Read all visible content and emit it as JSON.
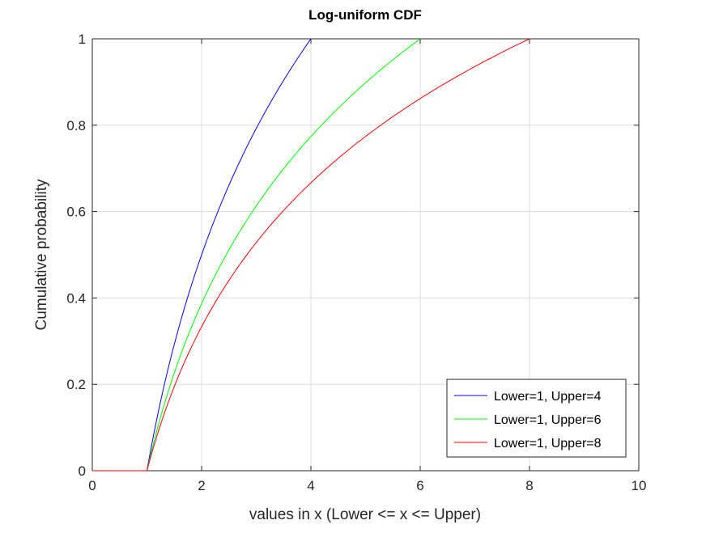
{
  "chart_data": {
    "type": "line",
    "title": "Log-uniform CDF",
    "xlabel": "values in x (Lower <= x <= Upper)",
    "ylabel": "Cumulative probability",
    "xlim": [
      0,
      10
    ],
    "ylim": [
      0,
      1
    ],
    "xticks": [
      "0",
      "2",
      "4",
      "6",
      "8",
      "10"
    ],
    "yticks": [
      "0",
      "0.2",
      "0.4",
      "0.6",
      "0.8",
      "1"
    ],
    "grid": true,
    "legend_position": "bottom-right",
    "series": [
      {
        "name": "Lower=1, Upper=4",
        "color": "#0000ff",
        "lower": 1,
        "upper": 4,
        "x": [
          0,
          1,
          1.5,
          2,
          2.5,
          3,
          3.5,
          4
        ],
        "y": [
          0,
          0,
          0.2925,
          0.5,
          0.661,
          0.7925,
          0.9037,
          1
        ]
      },
      {
        "name": "Lower=1, Upper=6",
        "color": "#00ff00",
        "lower": 1,
        "upper": 6,
        "x": [
          0,
          1,
          1.5,
          2,
          2.5,
          3,
          3.5,
          4,
          4.5,
          5,
          5.5,
          6
        ],
        "y": [
          0,
          0,
          0.2263,
          0.3869,
          0.5114,
          0.6131,
          0.6992,
          0.7737,
          0.8394,
          0.8982,
          0.9514,
          1
        ]
      },
      {
        "name": "Lower=1, Upper=8",
        "color": "#ff0000",
        "lower": 1,
        "upper": 8,
        "x": [
          0,
          1,
          1.5,
          2,
          2.5,
          3,
          3.5,
          4,
          4.5,
          5,
          5.5,
          6,
          6.5,
          7,
          7.5,
          8
        ],
        "y": [
          0,
          0,
          0.195,
          0.3333,
          0.4406,
          0.5283,
          0.6025,
          0.6667,
          0.7233,
          0.774,
          0.8198,
          0.8617,
          0.9001,
          0.9358,
          0.969,
          1
        ]
      }
    ]
  }
}
